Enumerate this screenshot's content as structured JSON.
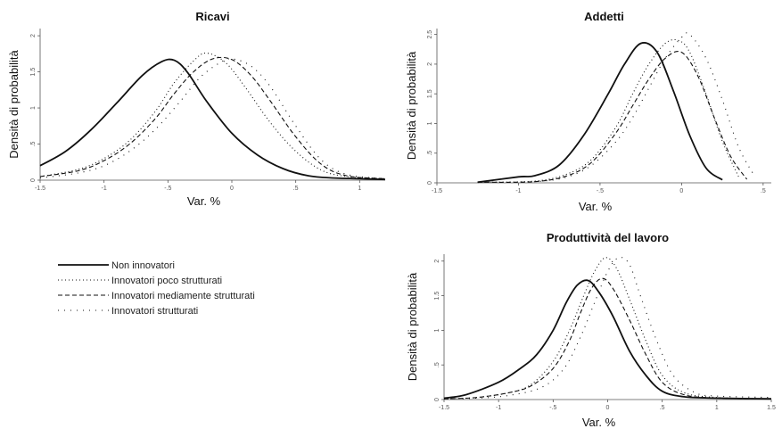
{
  "legend": {
    "items": [
      {
        "label": "Non innovatori",
        "dash": "solid",
        "width": 1.8
      },
      {
        "label": "Innovatori poco strutturati",
        "dash": "1,3",
        "width": 1.1
      },
      {
        "label": "Innovatori mediamente strutturati",
        "dash": "5,3",
        "width": 1.1
      },
      {
        "label": "Innovatori strutturati",
        "dash": "1,6",
        "width": 1.1
      }
    ]
  },
  "chart_data": [
    {
      "type": "line",
      "title": "Ricavi",
      "xlabel": "Var. %",
      "ylabel": "Densità di probabilità",
      "xlim": [
        -1.5,
        1.2
      ],
      "ylim": [
        0,
        2.1
      ],
      "xticks": [
        -1.5,
        -1,
        -0.5,
        0,
        0.5,
        1
      ],
      "xtick_labels": [
        "-1.5",
        "-1",
        "-.5",
        "0",
        ".5",
        "1"
      ],
      "yticks": [
        0,
        0.5,
        1,
        1.5,
        2
      ],
      "ytick_labels": [
        "0",
        ".5",
        "1",
        "1.5",
        "2"
      ],
      "series": [
        {
          "name": "Non innovatori",
          "x": [
            -1.5,
            -1.3,
            -1.1,
            -0.9,
            -0.7,
            -0.55,
            -0.45,
            -0.35,
            -0.2,
            0,
            0.2,
            0.4,
            0.6,
            0.8,
            1.0,
            1.2
          ],
          "y": [
            0.2,
            0.4,
            0.7,
            1.07,
            1.45,
            1.64,
            1.66,
            1.5,
            1.1,
            0.65,
            0.35,
            0.16,
            0.06,
            0.03,
            0.02,
            0.01
          ]
        },
        {
          "name": "Innovatori poco strutturati",
          "x": [
            -1.5,
            -1.2,
            -1.0,
            -0.8,
            -0.6,
            -0.45,
            -0.3,
            -0.2,
            -0.05,
            0.1,
            0.3,
            0.5,
            0.7,
            0.9,
            1.2
          ],
          "y": [
            0.05,
            0.15,
            0.3,
            0.55,
            0.95,
            1.35,
            1.65,
            1.76,
            1.63,
            1.3,
            0.8,
            0.4,
            0.14,
            0.05,
            0.02
          ]
        },
        {
          "name": "Innovatori mediamente strutturati",
          "x": [
            -1.5,
            -1.2,
            -1.0,
            -0.8,
            -0.6,
            -0.45,
            -0.3,
            -0.15,
            0,
            0.15,
            0.3,
            0.5,
            0.7,
            0.9,
            1.2
          ],
          "y": [
            0.05,
            0.13,
            0.27,
            0.5,
            0.85,
            1.2,
            1.5,
            1.68,
            1.67,
            1.45,
            1.1,
            0.6,
            0.22,
            0.06,
            0.02
          ]
        },
        {
          "name": "Innovatori strutturati",
          "x": [
            -1.5,
            -1.2,
            -1.0,
            -0.8,
            -0.6,
            -0.4,
            -0.25,
            -0.1,
            0,
            0.15,
            0.3,
            0.5,
            0.7,
            0.9,
            1.2
          ],
          "y": [
            0.03,
            0.1,
            0.2,
            0.4,
            0.7,
            1.1,
            1.42,
            1.62,
            1.68,
            1.58,
            1.3,
            0.75,
            0.28,
            0.08,
            0.02
          ]
        }
      ]
    },
    {
      "type": "line",
      "title": "Addetti",
      "xlabel": "Var. %",
      "ylabel": "Densità di probabilità",
      "xlim": [
        -1.5,
        0.55
      ],
      "ylim": [
        0,
        2.6
      ],
      "xticks": [
        -1.5,
        -1,
        -0.5,
        0,
        0.5
      ],
      "xtick_labels": [
        "-1.5",
        "-1",
        "-.5",
        "0",
        ".5"
      ],
      "yticks": [
        0,
        0.5,
        1,
        1.5,
        2,
        2.5
      ],
      "ytick_labels": [
        "0",
        ".5",
        "1",
        "1.5",
        "2",
        "2.5"
      ],
      "series": [
        {
          "name": "Non innovatori",
          "x": [
            -1.25,
            -1.0,
            -0.9,
            -0.75,
            -0.6,
            -0.45,
            -0.35,
            -0.25,
            -0.15,
            -0.05,
            0.05,
            0.15,
            0.25
          ],
          "y": [
            0.01,
            0.1,
            0.12,
            0.3,
            0.8,
            1.5,
            2.0,
            2.35,
            2.2,
            1.55,
            0.8,
            0.25,
            0.05
          ]
        },
        {
          "name": "Innovatori poco strutturati",
          "x": [
            -1.25,
            -0.9,
            -0.7,
            -0.55,
            -0.4,
            -0.3,
            -0.2,
            -0.1,
            -0.02,
            0.05,
            0.15,
            0.25,
            0.35
          ],
          "y": [
            0.01,
            0.03,
            0.15,
            0.4,
            0.95,
            1.5,
            2.0,
            2.35,
            2.4,
            2.2,
            1.5,
            0.7,
            0.1
          ]
        },
        {
          "name": "Innovatori mediamente strutturati",
          "x": [
            -1.25,
            -0.9,
            -0.7,
            -0.55,
            -0.4,
            -0.3,
            -0.2,
            -0.1,
            0,
            0.1,
            0.2,
            0.3,
            0.4
          ],
          "y": [
            0.01,
            0.02,
            0.12,
            0.35,
            0.85,
            1.3,
            1.75,
            2.1,
            2.2,
            1.8,
            1.1,
            0.45,
            0.06
          ]
        },
        {
          "name": "Innovatori strutturati",
          "x": [
            -1.25,
            -0.9,
            -0.7,
            -0.55,
            -0.4,
            -0.3,
            -0.2,
            -0.1,
            0,
            0.05,
            0.15,
            0.25,
            0.35,
            0.45
          ],
          "y": [
            0.01,
            0.02,
            0.1,
            0.3,
            0.7,
            1.1,
            1.6,
            2.1,
            2.45,
            2.5,
            2.1,
            1.4,
            0.6,
            0.1
          ]
        }
      ]
    },
    {
      "type": "line",
      "title": "Produttività del lavoro",
      "xlabel": "Var. %",
      "ylabel": "Densità di probabilità",
      "xlim": [
        -1.5,
        1.5
      ],
      "ylim": [
        0,
        2.1
      ],
      "xticks": [
        -1.5,
        -1,
        -0.5,
        0,
        0.5,
        1,
        1.5
      ],
      "xtick_labels": [
        "-1.5",
        "-1",
        "-.5",
        "0",
        ".5",
        "1",
        "1.5"
      ],
      "yticks": [
        0,
        0.5,
        1,
        1.5,
        2
      ],
      "ytick_labels": [
        "0",
        ".5",
        "1",
        "1.5",
        "2"
      ],
      "series": [
        {
          "name": "Non innovatori",
          "x": [
            -1.5,
            -1.3,
            -1.0,
            -0.8,
            -0.65,
            -0.5,
            -0.38,
            -0.28,
            -0.18,
            -0.08,
            0.05,
            0.2,
            0.35,
            0.5,
            0.7,
            1.0,
            1.5
          ],
          "y": [
            0.02,
            0.07,
            0.25,
            0.45,
            0.65,
            1.0,
            1.4,
            1.65,
            1.72,
            1.55,
            1.2,
            0.7,
            0.35,
            0.12,
            0.04,
            0.02,
            0.01
          ]
        },
        {
          "name": "Innovatori poco strutturati",
          "x": [
            -1.5,
            -1.2,
            -0.9,
            -0.7,
            -0.5,
            -0.35,
            -0.22,
            -0.12,
            -0.02,
            0.08,
            0.2,
            0.35,
            0.5,
            0.7,
            1.0,
            1.5
          ],
          "y": [
            0.01,
            0.03,
            0.1,
            0.22,
            0.55,
            1.0,
            1.5,
            1.85,
            2.05,
            1.9,
            1.45,
            0.85,
            0.35,
            0.1,
            0.03,
            0.01
          ]
        },
        {
          "name": "Innovatori mediamente strutturati",
          "x": [
            -1.5,
            -1.2,
            -0.9,
            -0.7,
            -0.5,
            -0.35,
            -0.25,
            -0.15,
            -0.05,
            0.05,
            0.2,
            0.35,
            0.5,
            0.7,
            1.0,
            1.5
          ],
          "y": [
            0.01,
            0.03,
            0.1,
            0.2,
            0.45,
            0.85,
            1.25,
            1.6,
            1.75,
            1.6,
            1.15,
            0.65,
            0.25,
            0.07,
            0.02,
            0.01
          ]
        },
        {
          "name": "Innovatori strutturati",
          "x": [
            -1.5,
            -1.2,
            -0.9,
            -0.6,
            -0.4,
            -0.25,
            -0.12,
            0,
            0.1,
            0.2,
            0.3,
            0.45,
            0.6,
            0.8,
            1.0,
            1.5
          ],
          "y": [
            0.01,
            0.02,
            0.06,
            0.18,
            0.45,
            0.9,
            1.4,
            1.85,
            2.05,
            1.95,
            1.5,
            0.85,
            0.35,
            0.1,
            0.05,
            0.03
          ]
        }
      ]
    }
  ]
}
